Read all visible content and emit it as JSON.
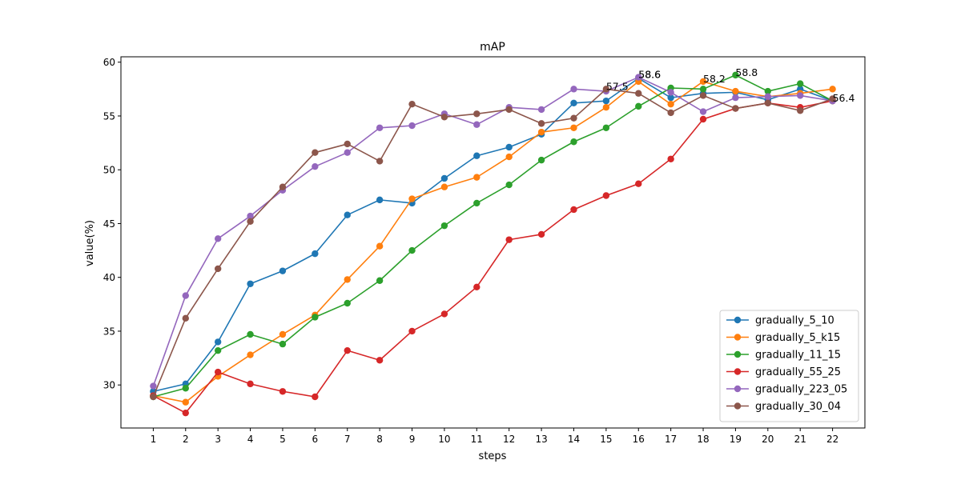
{
  "chart_data": {
    "type": "line",
    "title": "mAP",
    "xlabel": "steps",
    "ylabel": "value(%)",
    "x": [
      1,
      2,
      3,
      4,
      5,
      6,
      7,
      8,
      9,
      10,
      11,
      12,
      13,
      14,
      15,
      16,
      17,
      18,
      19,
      20,
      21,
      22
    ],
    "xlim": [
      0,
      23
    ],
    "ylim": [
      26,
      60.5
    ],
    "yticks": [
      30,
      35,
      40,
      45,
      50,
      55,
      60
    ],
    "grid": false,
    "legend_position": "lower-right",
    "series": [
      {
        "name": "gradually_5_10",
        "color": "#1f77b4",
        "values": [
          29.4,
          30.1,
          34.0,
          39.4,
          40.6,
          42.2,
          45.8,
          47.2,
          46.9,
          49.2,
          51.3,
          52.1,
          53.3,
          56.2,
          56.4,
          58.5,
          56.7,
          57.1,
          57.2,
          56.5,
          57.5,
          56.4
        ]
      },
      {
        "name": "gradually_5_k15",
        "color": "#ff7f0e",
        "values": [
          29.0,
          28.4,
          30.8,
          32.8,
          34.7,
          36.5,
          39.8,
          42.9,
          47.3,
          48.4,
          49.3,
          51.2,
          53.5,
          53.9,
          55.8,
          58.2,
          56.1,
          58.2,
          57.3,
          56.8,
          57.1,
          57.5
        ]
      },
      {
        "name": "gradually_11_15",
        "color": "#2ca02c",
        "values": [
          28.9,
          29.7,
          33.2,
          34.7,
          33.8,
          36.3,
          37.6,
          39.7,
          42.5,
          44.8,
          46.9,
          48.6,
          50.9,
          52.6,
          53.9,
          55.9,
          57.6,
          57.5,
          58.8,
          57.3,
          58.0,
          56.4
        ]
      },
      {
        "name": "gradually_55_25",
        "color": "#d62728",
        "values": [
          29.0,
          27.4,
          31.2,
          30.1,
          29.4,
          28.9,
          33.2,
          32.3,
          35.0,
          36.6,
          39.1,
          43.5,
          44.0,
          46.3,
          47.6,
          48.7,
          51.0,
          54.7,
          55.7,
          56.2,
          55.8,
          56.4
        ]
      },
      {
        "name": "gradually_223_05",
        "color": "#9467bd",
        "values": [
          29.9,
          38.3,
          43.6,
          45.7,
          48.1,
          50.3,
          51.6,
          53.9,
          54.1,
          55.2,
          54.2,
          55.8,
          55.6,
          57.5,
          57.3,
          58.6,
          57.2,
          55.4,
          56.7,
          56.8,
          56.9,
          56.4
        ]
      },
      {
        "name": "gradually_30_04",
        "color": "#8c564b",
        "values": [
          28.9,
          36.2,
          40.8,
          45.2,
          48.4,
          51.6,
          52.4,
          50.8,
          56.1,
          54.9,
          55.2,
          55.6,
          54.3,
          54.8,
          57.5,
          57.1,
          55.3,
          56.9,
          55.7,
          56.2,
          55.5,
          56.6
        ]
      }
    ],
    "annotations": [
      {
        "x": 15,
        "y": 57.5,
        "text": "57.5"
      },
      {
        "x": 16,
        "y": 58.6,
        "text": "58.6"
      },
      {
        "x": 16,
        "y": 58.6,
        "text": "58.6"
      },
      {
        "x": 18,
        "y": 58.2,
        "text": "58.2"
      },
      {
        "x": 19,
        "y": 58.8,
        "text": "58.8"
      },
      {
        "x": 22,
        "y": 56.4,
        "text": "56.4"
      }
    ]
  }
}
